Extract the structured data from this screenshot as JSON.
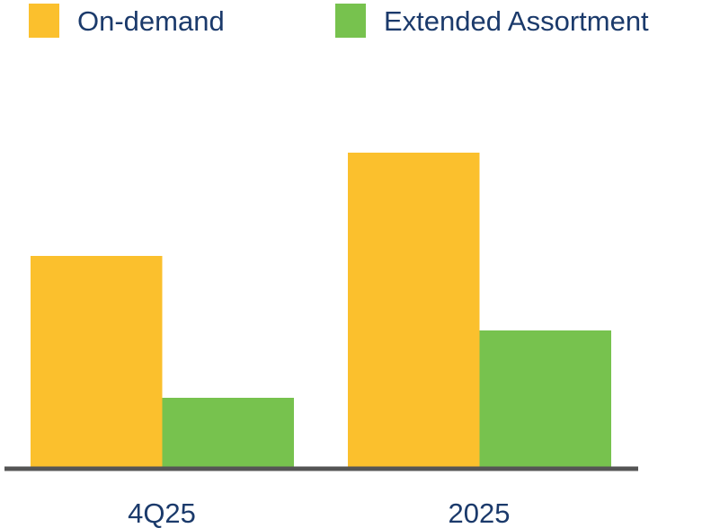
{
  "chart_data": {
    "type": "bar",
    "title": "",
    "xlabel": "",
    "ylabel": "",
    "categories": [
      "4Q25",
      "2025"
    ],
    "series": [
      {
        "name": "On-demand",
        "values": [
          235,
          350
        ],
        "color": "#FBC02D"
      },
      {
        "name": "Extended Assortment",
        "values": [
          77,
          152
        ],
        "color": "#77C24E"
      }
    ],
    "ylim": [
      0,
      360
    ],
    "grid": false,
    "legend": "top",
    "baseline_color": "#555555",
    "label_color": "#1B3A6B"
  }
}
